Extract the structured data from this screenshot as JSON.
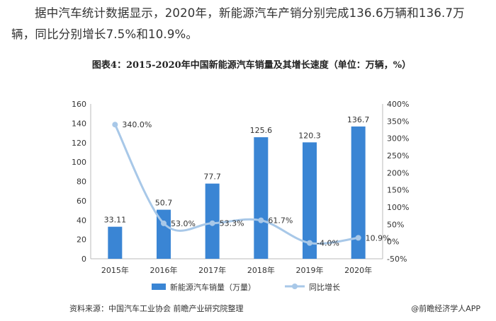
{
  "intro_text": "据中汽车统计数据显示，2020年，新能源汽车产销分别完成136.6万辆和136.7万辆，同比分别增长7.5%和10.9%。",
  "chart_data": {
    "type": "bar",
    "title": "图表4：2015-2020年中国新能源汽车销量及其增长速度（单位：万辆，%）",
    "categories": [
      "2015年",
      "2016年",
      "2017年",
      "2018年",
      "2019年",
      "2020年"
    ],
    "series": [
      {
        "name": "新能源汽车销量（万量）",
        "type": "bar",
        "axis": "left",
        "values": [
          33.11,
          50.7,
          77.7,
          125.6,
          120.3,
          136.7
        ],
        "labels": [
          "33.11",
          "50.7",
          "77.7",
          "125.6",
          "120.3",
          "136.7"
        ]
      },
      {
        "name": "同比增长",
        "type": "line",
        "axis": "right",
        "values": [
          340.0,
          53.0,
          53.3,
          61.7,
          -4.0,
          10.9
        ],
        "labels": [
          "340.0%",
          "53.0%",
          "53.3%",
          "61.7%",
          "-4.0%",
          "10.9%"
        ]
      }
    ],
    "y_left": {
      "min": 0,
      "max": 160,
      "ticks": [
        "0",
        "20",
        "40",
        "60",
        "80",
        "100",
        "120",
        "140",
        "160"
      ]
    },
    "y_right": {
      "min": -50,
      "max": 400,
      "ticks": [
        "-50%",
        "0%",
        "50%",
        "100%",
        "150%",
        "200%",
        "250%",
        "300%",
        "350%",
        "400%"
      ]
    },
    "grid": false,
    "legend": "bottom",
    "colors": {
      "bar": "#3a85d4",
      "line": "#a8c8e8"
    }
  },
  "footer": {
    "source": "资料来源：中国汽车工业协会 前瞻产业研究院整理",
    "brand": "@前瞻经济学人APP"
  }
}
